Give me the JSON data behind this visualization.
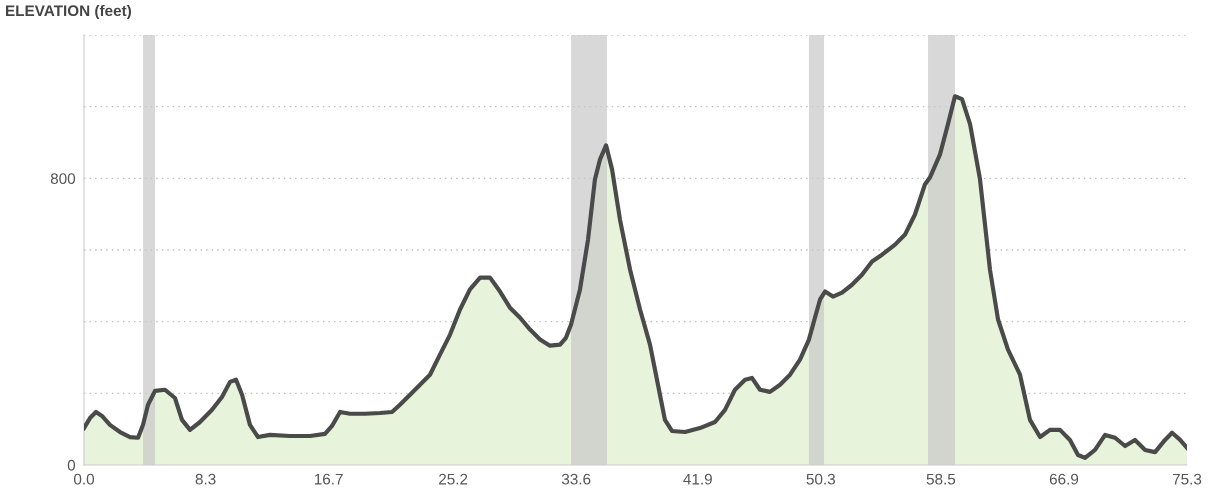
{
  "chart_data": {
    "type": "area",
    "title": "ELEVATION (feet)",
    "x": [
      0,
      0.41,
      0.82,
      1.23,
      1.77,
      2.46,
      3.14,
      3.69,
      4.03,
      4.37,
      4.85,
      5.53,
      6.21,
      6.69,
      7.24,
      7.92,
      8.74,
      9.42,
      9.97,
      10.38,
      10.79,
      11.33,
      11.88,
      12.7,
      14.06,
      15.43,
      16.45,
      16.93,
      17.48,
      18.16,
      19.18,
      20.21,
      21.03,
      21.57,
      22.26,
      22.94,
      23.62,
      24.3,
      24.99,
      25.67,
      26.35,
      27.04,
      27.72,
      28.4,
      29.08,
      29.77,
      30.45,
      31.13,
      31.81,
      32.5,
      32.9,
      33.25,
      33.86,
      34.41,
      34.88,
      35.23,
      35.64,
      36.05,
      36.59,
      37.28,
      37.96,
      38.64,
      39.32,
      39.66,
      40.14,
      41.03,
      42.05,
      43.08,
      43.76,
      44.44,
      45.13,
      45.6,
      46.15,
      46.83,
      47.52,
      48.2,
      48.88,
      49.49,
      49.9,
      50.25,
      50.59,
      51.13,
      51.75,
      52.43,
      53.11,
      53.8,
      54.48,
      55.37,
      56.05,
      56.73,
      57.41,
      57.76,
      58.44,
      58.98,
      59.46,
      59.94,
      60.49,
      61.17,
      61.85,
      62.4,
      63.08,
      63.9,
      64.58,
      65.27,
      65.95,
      66.63,
      67.31,
      67.86,
      68.34,
      69.02,
      69.71,
      70.39,
      71.07,
      71.75,
      72.44,
      73.12,
      73.8,
      74.28,
      74.83,
      75.3
    ],
    "series": [
      {
        "color": "#4a4a4a",
        "values": [
          103,
          131,
          148,
          137,
          112,
          92,
          78,
          76,
          112,
          168,
          207,
          210,
          187,
          126,
          98,
          120,
          154,
          190,
          232,
          238,
          196,
          112,
          78,
          84,
          81,
          81,
          87,
          109,
          148,
          143,
          143,
          145,
          148,
          168,
          196,
          224,
          252,
          308,
          364,
          434,
          490,
          523,
          523,
          484,
          439,
          411,
          378,
          350,
          333,
          336,
          355,
          392,
          490,
          629,
          797,
          853,
          892,
          825,
          685,
          545,
          434,
          336,
          196,
          126,
          95,
          92,
          103,
          120,
          154,
          210,
          238,
          243,
          210,
          204,
          224,
          252,
          294,
          350,
          411,
          462,
          484,
          470,
          481,
          503,
          531,
          568,
          587,
          615,
          643,
          699,
          783,
          803,
          867,
          951,
          1029,
          1021,
          951,
          797,
          545,
          406,
          322,
          252,
          126,
          78,
          98,
          98,
          70,
          28,
          20,
          42,
          84,
          76,
          53,
          70,
          42,
          36,
          70,
          90,
          70,
          48
        ]
      }
    ],
    "xlim": [
      0,
      75.3
    ],
    "ylim": [
      0,
      1200
    ],
    "xticks": [
      {
        "value": 0,
        "label": "0.0"
      },
      8.3,
      16.7,
      25.2,
      33.6,
      41.9,
      50.3,
      58.5,
      66.9,
      75.3
    ],
    "yticks": [
      0,
      {
        "value": 200,
        "label": null
      },
      {
        "value": 400,
        "label": null
      },
      {
        "value": 600,
        "label": null
      },
      800,
      {
        "value": 1000,
        "label": null
      },
      {
        "value": 1200,
        "label": null
      }
    ],
    "bands": [
      {
        "axis": "x",
        "from": 4.03,
        "to": 4.85,
        "color": "#c8c8c8"
      },
      {
        "axis": "x",
        "from": 33.25,
        "to": 35.7,
        "color": "#c8c8c8"
      },
      {
        "axis": "x",
        "from": 49.49,
        "to": 50.52,
        "color": "#c8c8c8"
      },
      {
        "axis": "x",
        "from": 57.62,
        "to": 59.46,
        "color": "#c8c8c8"
      }
    ],
    "grid": "y",
    "line_style": "solid"
  }
}
